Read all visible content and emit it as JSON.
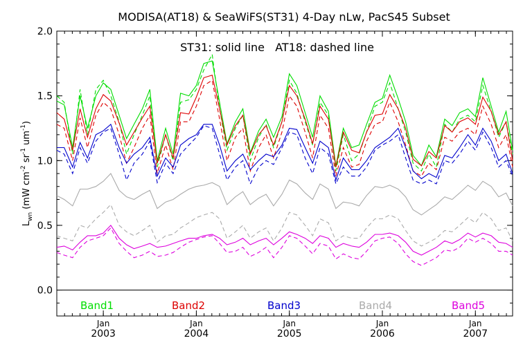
{
  "chart_data": {
    "type": "line",
    "title": "MODISA(AT18) & SeaWiFS(ST31) 4-Day nLw, PacS45 Subset",
    "annotation": "ST31: solid line   AT18: dashed line",
    "ylabel": "L_wn (mW cm^-2 sr^-1 um^-1)",
    "ylabel_parts": {
      "main": "L",
      "sub": "wn",
      "units_open": "(mW cm",
      "exp1": "-2",
      "mid": " sr",
      "exp2": "-1",
      "mid2": " um",
      "exp3": "-1",
      "units_close": ")"
    },
    "xlabel": "",
    "ylim": [
      -0.2,
      2.0
    ],
    "xlim": [
      2002.5,
      2007.4
    ],
    "y_ticks": [
      0.0,
      0.5,
      1.0,
      1.5,
      2.0
    ],
    "y_tick_labels": [
      "0.0",
      "0.5",
      "1.0",
      "1.5",
      "2.0"
    ],
    "x_ticks": [
      {
        "x": 2003.0,
        "month": "Jan",
        "year": "2003"
      },
      {
        "x": 2004.0,
        "month": "Jan",
        "year": "2004"
      },
      {
        "x": 2005.0,
        "month": "Jan",
        "year": "2005"
      },
      {
        "x": 2006.0,
        "month": "Jan",
        "year": "2006"
      },
      {
        "x": 2007.0,
        "month": "Jan",
        "year": "2007"
      }
    ],
    "reference_line_y": 0.0,
    "grid": false,
    "legend_position": "bottom",
    "x": [
      2002.5,
      2002.58,
      2002.67,
      2002.75,
      2002.83,
      2002.92,
      2003.0,
      2003.08,
      2003.17,
      2003.25,
      2003.33,
      2003.42,
      2003.5,
      2003.58,
      2003.67,
      2003.75,
      2003.83,
      2003.92,
      2004.0,
      2004.08,
      2004.17,
      2004.25,
      2004.33,
      2004.42,
      2004.5,
      2004.58,
      2004.67,
      2004.75,
      2004.83,
      2004.92,
      2005.0,
      2005.08,
      2005.17,
      2005.25,
      2005.33,
      2005.42,
      2005.5,
      2005.58,
      2005.67,
      2005.75,
      2005.83,
      2005.92,
      2006.0,
      2006.08,
      2006.17,
      2006.25,
      2006.33,
      2006.42,
      2006.5,
      2006.58,
      2006.67,
      2006.75,
      2006.83,
      2006.92,
      2007.0,
      2007.08,
      2007.17,
      2007.25,
      2007.33,
      2007.4
    ],
    "series": [
      {
        "name": "Band1",
        "color": "#00dd00",
        "solid": [
          1.46,
          1.43,
          1.1,
          1.5,
          1.25,
          1.5,
          1.6,
          1.55,
          1.35,
          1.17,
          1.28,
          1.4,
          1.55,
          1.0,
          1.25,
          1.05,
          1.52,
          1.5,
          1.58,
          1.75,
          1.77,
          1.45,
          1.13,
          1.3,
          1.4,
          1.06,
          1.23,
          1.32,
          1.18,
          1.34,
          1.67,
          1.58,
          1.37,
          1.18,
          1.5,
          1.38,
          0.96,
          1.25,
          1.1,
          1.12,
          1.28,
          1.45,
          1.48,
          1.66,
          1.48,
          1.3,
          1.04,
          0.96,
          1.12,
          1.03,
          1.32,
          1.27,
          1.37,
          1.4,
          1.34,
          1.64,
          1.42,
          1.22,
          1.38,
          1.08
        ],
        "dashed": [
          1.5,
          1.45,
          1.05,
          1.55,
          1.2,
          1.55,
          1.62,
          1.5,
          1.3,
          1.05,
          1.2,
          1.35,
          1.5,
          0.95,
          1.2,
          1.0,
          1.45,
          1.47,
          1.55,
          1.7,
          1.82,
          1.4,
          1.08,
          1.25,
          1.35,
          1.0,
          1.18,
          1.28,
          1.1,
          1.3,
          1.62,
          1.52,
          1.3,
          1.12,
          1.45,
          1.35,
          0.92,
          1.2,
          1.0,
          1.05,
          1.22,
          1.42,
          1.45,
          1.6,
          1.4,
          1.22,
          0.98,
          0.92,
          1.05,
          0.95,
          1.28,
          1.22,
          1.32,
          1.35,
          1.3,
          1.58,
          1.38,
          1.18,
          1.3,
          1.05
        ]
      },
      {
        "name": "Band2",
        "color": "#dd0000",
        "solid": [
          1.37,
          1.32,
          1.08,
          1.4,
          1.18,
          1.4,
          1.51,
          1.46,
          1.29,
          1.12,
          1.22,
          1.33,
          1.42,
          0.98,
          1.2,
          1.02,
          1.37,
          1.36,
          1.49,
          1.64,
          1.66,
          1.4,
          1.12,
          1.27,
          1.35,
          1.05,
          1.2,
          1.27,
          1.12,
          1.3,
          1.58,
          1.5,
          1.32,
          1.13,
          1.42,
          1.32,
          0.95,
          1.22,
          1.08,
          1.06,
          1.22,
          1.35,
          1.36,
          1.51,
          1.4,
          1.25,
          1.01,
          0.96,
          1.07,
          1.02,
          1.27,
          1.22,
          1.3,
          1.33,
          1.28,
          1.49,
          1.38,
          1.2,
          1.3,
          1.0
        ],
        "dashed": [
          1.28,
          1.25,
          1.0,
          1.33,
          1.1,
          1.35,
          1.45,
          1.4,
          1.2,
          0.98,
          1.1,
          1.25,
          1.35,
          0.9,
          1.12,
          0.93,
          1.3,
          1.3,
          1.42,
          1.58,
          1.62,
          1.32,
          1.0,
          1.18,
          1.25,
          0.92,
          1.1,
          1.2,
          1.02,
          1.22,
          1.5,
          1.42,
          1.22,
          1.02,
          1.35,
          1.25,
          0.88,
          1.1,
          0.95,
          0.97,
          1.15,
          1.28,
          1.3,
          1.45,
          1.3,
          1.12,
          0.92,
          0.88,
          0.98,
          0.93,
          1.18,
          1.15,
          1.22,
          1.25,
          1.2,
          1.42,
          1.28,
          1.1,
          1.2,
          0.95
        ]
      },
      {
        "name": "Band3",
        "color": "#0000cc",
        "solid": [
          1.1,
          1.1,
          0.95,
          1.14,
          1.02,
          1.2,
          1.23,
          1.28,
          1.1,
          0.98,
          1.05,
          1.1,
          1.18,
          0.88,
          1.02,
          0.95,
          1.12,
          1.17,
          1.2,
          1.28,
          1.28,
          1.12,
          0.92,
          1.0,
          1.05,
          0.93,
          1.0,
          1.05,
          1.03,
          1.12,
          1.25,
          1.24,
          1.1,
          0.98,
          1.15,
          1.1,
          0.85,
          1.02,
          0.93,
          0.93,
          1.0,
          1.1,
          1.14,
          1.18,
          1.25,
          1.1,
          0.92,
          0.86,
          0.9,
          0.87,
          1.04,
          1.02,
          1.1,
          1.2,
          1.12,
          1.25,
          1.15,
          1.0,
          1.05,
          0.9
        ],
        "dashed": [
          1.08,
          1.05,
          0.9,
          1.1,
          0.98,
          1.15,
          1.22,
          1.25,
          1.05,
          0.85,
          0.98,
          1.05,
          1.15,
          0.83,
          0.98,
          0.9,
          1.05,
          1.12,
          1.18,
          1.27,
          1.25,
          1.05,
          0.85,
          0.95,
          1.0,
          0.82,
          0.95,
          1.0,
          0.97,
          1.1,
          1.22,
          1.2,
          1.02,
          0.9,
          1.1,
          1.05,
          0.82,
          0.95,
          0.88,
          0.88,
          0.95,
          1.08,
          1.12,
          1.15,
          1.2,
          1.02,
          0.85,
          0.82,
          0.85,
          0.82,
          1.0,
          0.98,
          1.05,
          1.15,
          1.08,
          1.22,
          1.1,
          0.95,
          1.0,
          0.88
        ]
      },
      {
        "name": "Band4",
        "color": "#aaaaaa",
        "solid": [
          0.73,
          0.7,
          0.65,
          0.78,
          0.78,
          0.8,
          0.84,
          0.9,
          0.77,
          0.72,
          0.7,
          0.74,
          0.77,
          0.63,
          0.68,
          0.7,
          0.74,
          0.78,
          0.8,
          0.81,
          0.83,
          0.8,
          0.66,
          0.72,
          0.76,
          0.66,
          0.71,
          0.74,
          0.65,
          0.74,
          0.85,
          0.82,
          0.75,
          0.7,
          0.82,
          0.78,
          0.63,
          0.68,
          0.67,
          0.65,
          0.73,
          0.8,
          0.79,
          0.81,
          0.78,
          0.72,
          0.62,
          0.58,
          0.62,
          0.66,
          0.72,
          0.7,
          0.75,
          0.81,
          0.77,
          0.84,
          0.8,
          0.72,
          0.75,
          0.65
        ],
        "dashed": [
          0.42,
          0.4,
          0.38,
          0.5,
          0.48,
          0.55,
          0.6,
          0.66,
          0.5,
          0.45,
          0.42,
          0.46,
          0.5,
          0.37,
          0.42,
          0.43,
          0.48,
          0.52,
          0.56,
          0.58,
          0.6,
          0.55,
          0.4,
          0.45,
          0.5,
          0.4,
          0.45,
          0.48,
          0.38,
          0.48,
          0.6,
          0.58,
          0.5,
          0.42,
          0.55,
          0.52,
          0.38,
          0.42,
          0.4,
          0.4,
          0.48,
          0.55,
          0.55,
          0.58,
          0.55,
          0.46,
          0.38,
          0.34,
          0.37,
          0.4,
          0.46,
          0.45,
          0.5,
          0.56,
          0.52,
          0.6,
          0.55,
          0.46,
          0.48,
          0.38
        ]
      },
      {
        "name": "Band5",
        "color": "#dd00dd",
        "solid": [
          0.33,
          0.34,
          0.31,
          0.37,
          0.42,
          0.42,
          0.44,
          0.5,
          0.4,
          0.35,
          0.32,
          0.34,
          0.36,
          0.33,
          0.34,
          0.36,
          0.38,
          0.4,
          0.4,
          0.42,
          0.43,
          0.4,
          0.35,
          0.37,
          0.4,
          0.35,
          0.38,
          0.4,
          0.35,
          0.4,
          0.45,
          0.43,
          0.4,
          0.36,
          0.42,
          0.4,
          0.33,
          0.36,
          0.34,
          0.33,
          0.37,
          0.43,
          0.43,
          0.44,
          0.42,
          0.37,
          0.3,
          0.27,
          0.3,
          0.33,
          0.38,
          0.36,
          0.39,
          0.44,
          0.41,
          0.44,
          0.42,
          0.37,
          0.36,
          0.33
        ],
        "dashed": [
          0.29,
          0.27,
          0.25,
          0.33,
          0.38,
          0.4,
          0.42,
          0.48,
          0.36,
          0.3,
          0.25,
          0.27,
          0.3,
          0.26,
          0.27,
          0.29,
          0.33,
          0.37,
          0.39,
          0.41,
          0.42,
          0.36,
          0.29,
          0.3,
          0.33,
          0.26,
          0.29,
          0.33,
          0.25,
          0.33,
          0.42,
          0.4,
          0.34,
          0.28,
          0.36,
          0.34,
          0.24,
          0.28,
          0.25,
          0.24,
          0.3,
          0.38,
          0.4,
          0.41,
          0.36,
          0.28,
          0.22,
          0.19,
          0.22,
          0.25,
          0.31,
          0.3,
          0.33,
          0.4,
          0.37,
          0.4,
          0.36,
          0.3,
          0.3,
          0.27
        ]
      }
    ]
  }
}
